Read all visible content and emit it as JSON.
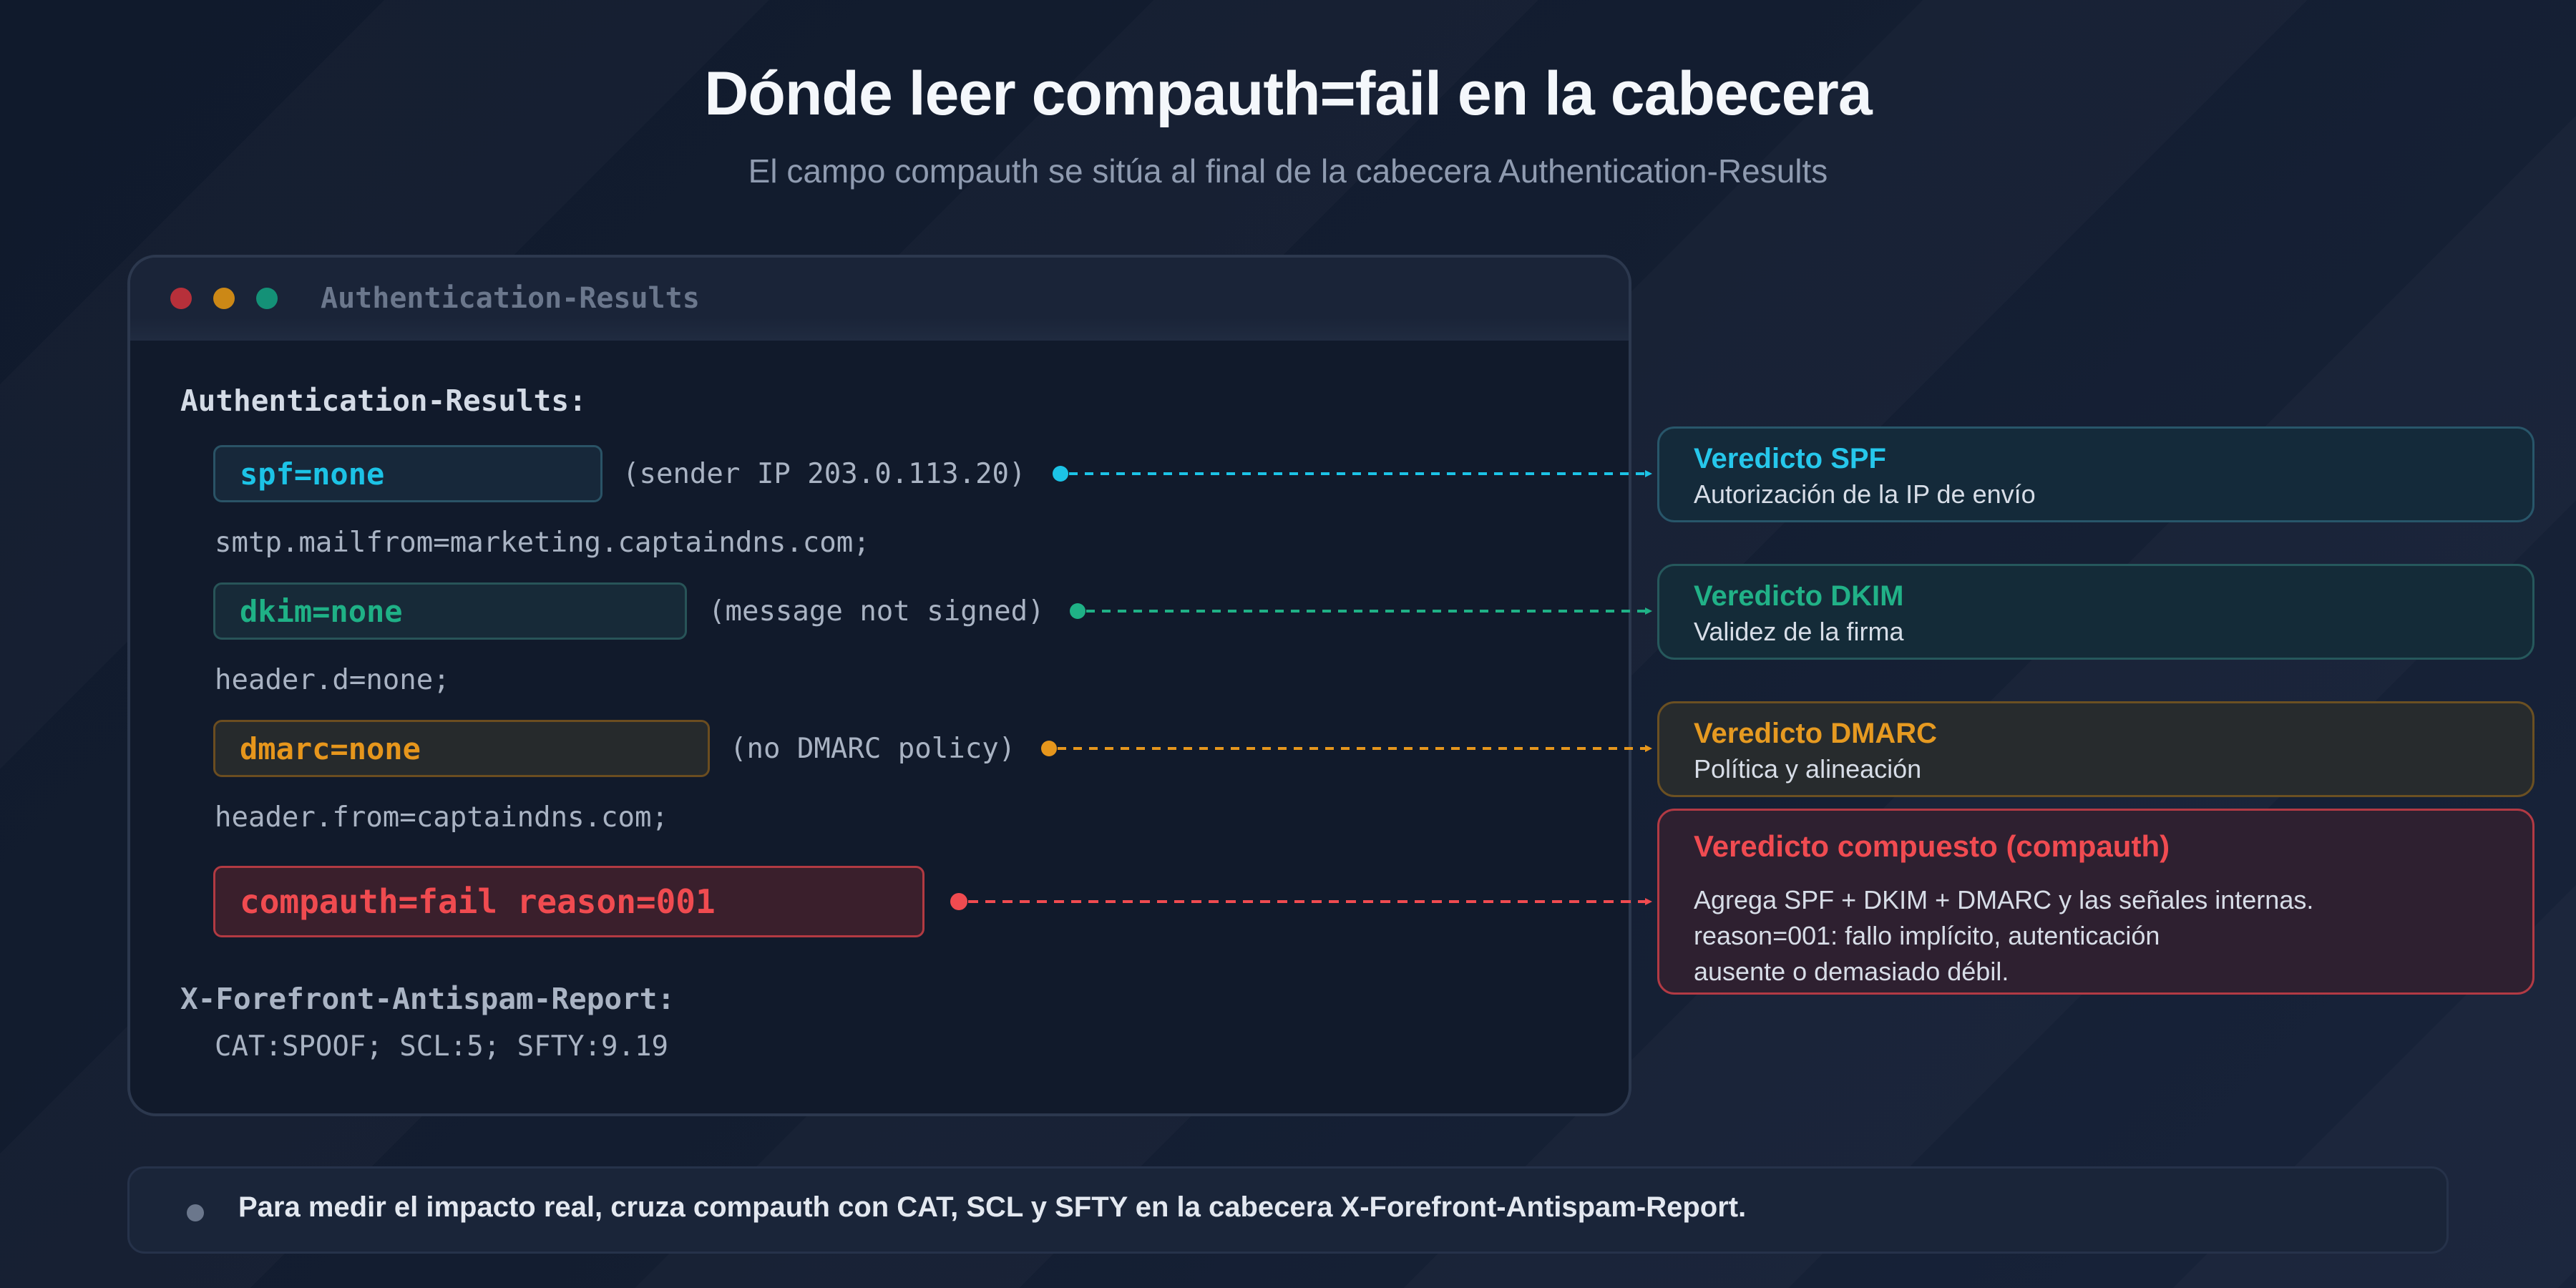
{
  "header": {
    "title": "Dónde leer compauth=fail en la cabecera",
    "subtitle": "El campo compauth se sitúa al final de la cabecera Authentication-Results"
  },
  "window": {
    "title": "Authentication-Results",
    "controls": [
      "close",
      "minimize",
      "maximize"
    ],
    "colors": {
      "close": "#b7303a",
      "minimize": "#cc8816",
      "maximize": "#149177"
    }
  },
  "header_block": {
    "label": "Authentication-Results:",
    "spf": {
      "value": "spf=none",
      "note": "(sender IP 203.0.113.20)"
    },
    "smtp": "smtp.mailfrom=marketing.captaindns.com;",
    "dkim": {
      "value": "dkim=none",
      "note": "(message not signed)"
    },
    "header_d": "header.d=none;",
    "dmarc": {
      "value": "dmarc=none",
      "note": "(no DMARC policy)"
    },
    "header_from": "header.from=captaindns.com;",
    "compauth": "compauth=fail reason=001",
    "antispam_label": "X-Forefront-Antispam-Report:",
    "antispam_value": "CAT:SPOOF; SCL:5; SFTY:9.19"
  },
  "cards": {
    "spf": {
      "title": "Veredicto SPF",
      "desc": "Autorización de la IP de envío",
      "color": "#1cc3e6"
    },
    "dkim": {
      "title": "Veredicto DKIM",
      "desc": "Validez de la firma",
      "color": "#1fb186"
    },
    "dmarc": {
      "title": "Veredicto DMARC",
      "desc": "Política y alineación",
      "color": "#e6961c"
    },
    "compauth": {
      "title": "Veredicto compuesto (compauth)",
      "line1": "Agrega SPF + DKIM + DMARC y las señales internas.",
      "line2": "reason=001: fallo implícito, autenticación",
      "line3": "ausente o demasiado débil.",
      "color": "#f04b50"
    }
  },
  "footer": {
    "text": "Para medir el impacto real, cruza compauth con CAT, SCL y SFTY en la cabecera X-Forefront-Antispam-Report."
  }
}
